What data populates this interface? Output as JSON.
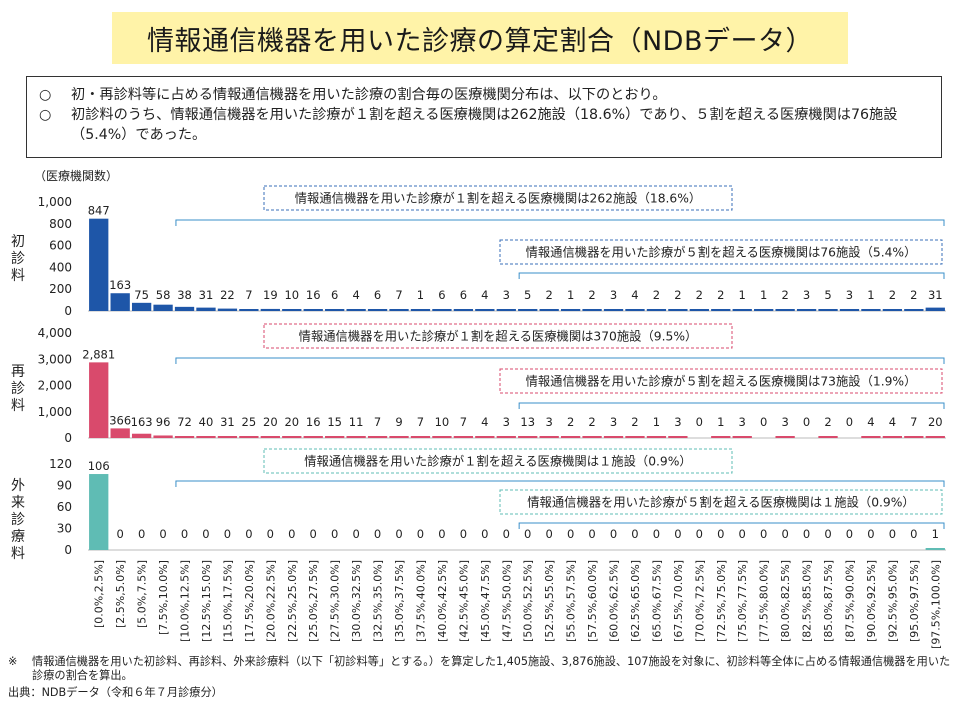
{
  "title": "情報通信機器を用いた診療の算定割合（NDBデータ）",
  "summary": {
    "bullet": "○",
    "items": [
      "初・再診料等に占める情報通信機器を用いた診療の割合毎の医療機関分布は、以下のとおり。",
      "初診料のうち、情報通信機器を用いた診療が１割を超える医療機関は262施設（18.6%）であり、５割を超える医療機関は76施設（5.4%）であった。"
    ]
  },
  "footnote": {
    "mark": "※",
    "text": "情報通信機器を用いた初診料、再診料、外来診療料（以下「初診料等」とする。）を算定した1,405施設、3,876施設、107施設を対象に、初診料等全体に占める情報通信機器を用いた診療の割合を算出。",
    "source": "出典：NDBデータ（令和６年７月診療分）"
  },
  "chart_data": {
    "type": "bar",
    "ylabel": "（医療機関数）",
    "categories": [
      "[0.0%,2.5%]",
      "[2.5%,5.0%]",
      "[5.0%,7.5%]",
      "[7.5%,10.0%]",
      "[10.0%,12.5%]",
      "[12.5%,15.0%]",
      "[15.0%,17.5%]",
      "[17.5%,20.0%]",
      "[20.0%,22.5%]",
      "[22.5%,25.0%]",
      "[25.0%,27.5%]",
      "[27.5%,30.0%]",
      "[30.0%,32.5%]",
      "[32.5%,35.0%]",
      "[35.0%,37.5%]",
      "[37.5%,40.0%]",
      "[40.0%,42.5%]",
      "[42.5%,45.0%]",
      "[45.0%,47.5%]",
      "[47.5%,50.0%]",
      "[50.0%,52.5%]",
      "[52.5%,55.0%]",
      "[55.0%,57.5%]",
      "[57.5%,60.0%]",
      "[60.0%,62.5%]",
      "[62.5%,65.0%]",
      "[65.0%,67.5%]",
      "[67.5%,70.0%]",
      "[70.0%,72.5%]",
      "[72.5%,75.0%]",
      "[75.0%,77.5%]",
      "[77.5%,80.0%]",
      "[80.0%,82.5%]",
      "[82.5%,85.0%]",
      "[85.0%,87.5%]",
      "[87.5%,90.0%]",
      "[90.0%,92.5%]",
      "[92.5%,95.0%]",
      "[95.0%,97.5%]",
      "[97.5%,100.0%]"
    ],
    "panels": [
      {
        "name": "初診料",
        "color": "#1e56a8",
        "ylim": [
          0,
          1000
        ],
        "yticks": [
          "0",
          "200",
          "400",
          "600",
          "800",
          "1,000"
        ],
        "tick_values": [
          0,
          200,
          400,
          600,
          800,
          1000
        ],
        "values": [
          847,
          163,
          75,
          58,
          38,
          31,
          22,
          7,
          19,
          10,
          16,
          6,
          4,
          6,
          7,
          1,
          6,
          6,
          4,
          3,
          5,
          2,
          1,
          2,
          3,
          4,
          2,
          2,
          2,
          2,
          1,
          1,
          2,
          3,
          5,
          3,
          1,
          2,
          2,
          31
        ],
        "value_labels": [
          "847",
          "163",
          "75",
          "58",
          "38",
          "31",
          "22",
          "7",
          "19",
          "10",
          "16",
          "6",
          "4",
          "6",
          "7",
          "1",
          "6",
          "6",
          "4",
          "3",
          "5",
          "2",
          "1",
          "2",
          "3",
          "4",
          "2",
          "2",
          "2",
          "2",
          "1",
          "1",
          "2",
          "3",
          "5",
          "3",
          "1",
          "2",
          "2",
          "31"
        ],
        "annotation_10": "情報通信機器を用いた診療が１割を超える医療機関は262施設（18.6%）",
        "annotation_50": "情報通信機器を用いた診療が５割を超える医療機関は76施設（5.4%）"
      },
      {
        "name": "再診料",
        "color": "#d94a6c",
        "ylim": [
          0,
          4000
        ],
        "yticks": [
          "0",
          "1,000",
          "2,000",
          "3,000",
          "4,000"
        ],
        "tick_values": [
          0,
          1000,
          2000,
          3000,
          4000
        ],
        "values": [
          2881,
          366,
          163,
          96,
          72,
          40,
          31,
          25,
          20,
          20,
          16,
          15,
          11,
          7,
          9,
          7,
          10,
          7,
          4,
          3,
          13,
          3,
          2,
          2,
          3,
          2,
          1,
          3,
          0,
          1,
          3,
          0,
          3,
          0,
          2,
          0,
          4,
          4,
          7,
          20
        ],
        "value_labels": [
          "2,881",
          "366",
          "163",
          "96",
          "72",
          "40",
          "31",
          "25",
          "20",
          "20",
          "16",
          "15",
          "11",
          "7",
          "9",
          "7",
          "10",
          "7",
          "4",
          "3",
          "13",
          "3",
          "2",
          "2",
          "3",
          "2",
          "1",
          "3",
          "0",
          "1",
          "3",
          "0",
          "3",
          "0",
          "2",
          "0",
          "4",
          "4",
          "7",
          "20"
        ],
        "annotation_10": "情報通信機器を用いた診療が１割を超える医療機関は370施設（9.5%）",
        "annotation_50": "情報通信機器を用いた診療が５割を超える医療機関は73施設（1.9%）"
      },
      {
        "name": "外来診療料",
        "color": "#5fbcb4",
        "ylim": [
          0,
          120
        ],
        "yticks": [
          "0",
          "30",
          "60",
          "90",
          "120"
        ],
        "tick_values": [
          0,
          30,
          60,
          90,
          120
        ],
        "values": [
          106,
          0,
          0,
          0,
          0,
          0,
          0,
          0,
          0,
          0,
          0,
          0,
          0,
          0,
          0,
          0,
          0,
          0,
          0,
          0,
          0,
          0,
          0,
          0,
          0,
          0,
          0,
          0,
          0,
          0,
          0,
          0,
          0,
          0,
          0,
          0,
          0,
          0,
          0,
          1
        ],
        "value_labels": [
          "106",
          "0",
          "0",
          "0",
          "0",
          "0",
          "0",
          "0",
          "0",
          "0",
          "0",
          "0",
          "0",
          "0",
          "0",
          "0",
          "0",
          "0",
          "0",
          "0",
          "0",
          "0",
          "0",
          "0",
          "0",
          "0",
          "0",
          "0",
          "0",
          "0",
          "0",
          "0",
          "0",
          "0",
          "0",
          "0",
          "0",
          "0",
          "0",
          "1"
        ],
        "annotation_10": "情報通信機器を用いた診療が１割を超える医療機関は１施設（0.9%）",
        "annotation_50": "情報通信機器を用いた診療が５割を超える医療機関は１施設（0.9%）"
      }
    ]
  }
}
